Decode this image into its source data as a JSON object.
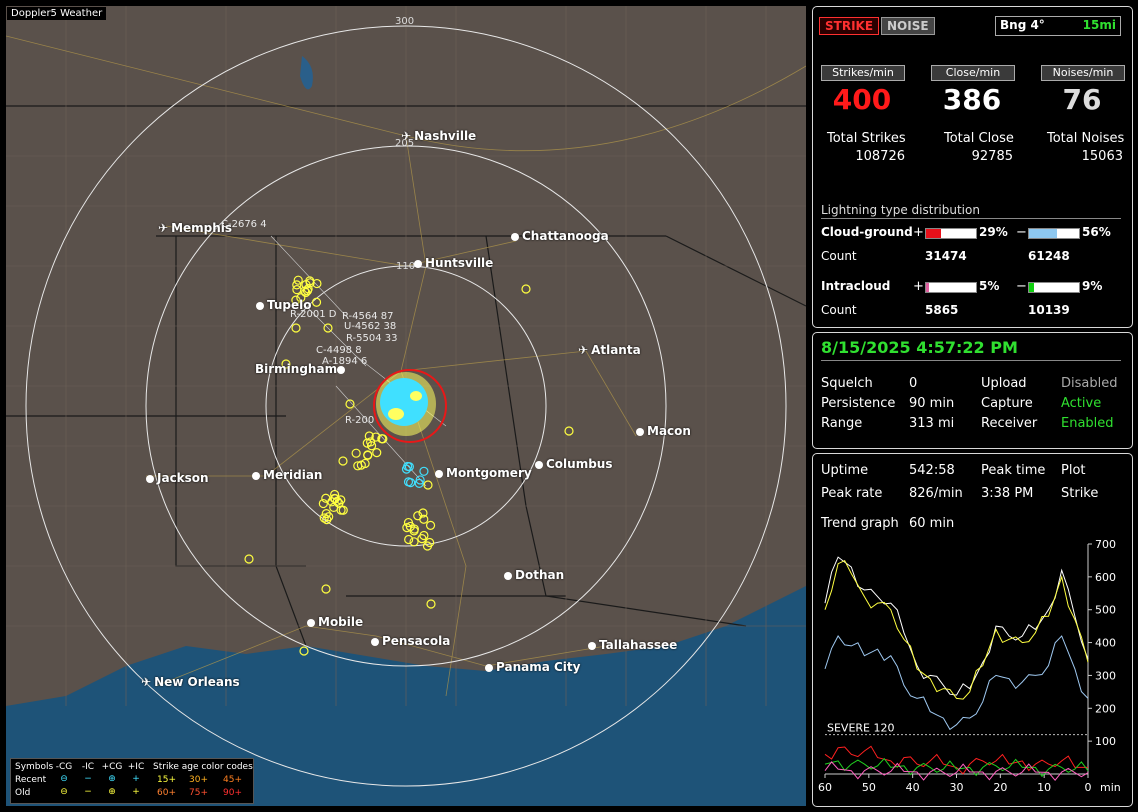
{
  "map": {
    "title": "Doppler5 Weather",
    "ring_labels": [
      "300",
      "205",
      "110"
    ],
    "cities": [
      {
        "name": "Nashville",
        "icon": "plane-icon",
        "x": 395,
        "y": 129
      },
      {
        "name": "Memphis",
        "icon": "plane-icon",
        "x": 152,
        "y": 221
      },
      {
        "name": "Chattanooga",
        "icon": "dot-icon",
        "x": 505,
        "y": 229
      },
      {
        "name": "Huntsville",
        "icon": "dot-icon",
        "x": 408,
        "y": 256
      },
      {
        "name": "Tupelo",
        "icon": "dot-icon",
        "x": 250,
        "y": 298
      },
      {
        "name": "Atlanta",
        "icon": "plane-icon",
        "x": 572,
        "y": 343
      },
      {
        "name": "Birmingham",
        "icon": "dot-icon",
        "x": 321,
        "y": 362,
        "left": true
      },
      {
        "name": "Macon",
        "icon": "dot-icon",
        "x": 630,
        "y": 424
      },
      {
        "name": "Columbus",
        "icon": "dot-icon",
        "x": 529,
        "y": 457
      },
      {
        "name": "Montgomery",
        "icon": "dot-icon",
        "x": 429,
        "y": 466
      },
      {
        "name": "Jackson",
        "icon": "dot-icon",
        "x": 140,
        "y": 471
      },
      {
        "name": "Meridian",
        "icon": "dot-icon",
        "x": 246,
        "y": 468
      },
      {
        "name": "Dothan",
        "icon": "dot-icon",
        "x": 498,
        "y": 568
      },
      {
        "name": "Mobile",
        "icon": "dot-icon",
        "x": 301,
        "y": 615
      },
      {
        "name": "Pensacola",
        "icon": "dot-icon",
        "x": 365,
        "y": 634
      },
      {
        "name": "Tallahassee",
        "icon": "dot-icon",
        "x": 582,
        "y": 638
      },
      {
        "name": "Panama City",
        "icon": "dot-icon",
        "x": 479,
        "y": 660
      },
      {
        "name": "New Orleans",
        "icon": "plane-icon",
        "x": 135,
        "y": 675
      }
    ],
    "storm_labels": [
      "C-2676 4",
      "R-2001 D",
      "R-4564 87",
      "U-4562 38",
      "R-5504 33",
      "C-4498 8",
      "A-1894 6",
      "R-200"
    ]
  },
  "legend": {
    "symbols_label": "Symbols",
    "headers": [
      "-CG",
      "-IC",
      "+CG",
      "+IC"
    ],
    "age_label": "Strike age color codes",
    "recent_label": "Recent",
    "old_label": "Old",
    "recent_ages": [
      "15+",
      "30+",
      "45+"
    ],
    "old_ages": [
      "60+",
      "75+",
      "90+"
    ]
  },
  "top_panel": {
    "strike_btn": "STRIKE",
    "noise_btn": "NOISE",
    "bearing": "Bng 4°",
    "distance": "15mi",
    "strikes_hdr": "Strikes/min",
    "close_hdr": "Close/min",
    "noises_hdr": "Noises/min",
    "strikes_val": "400",
    "close_val": "386",
    "noises_val": "76",
    "total_strikes_lbl": "Total Strikes",
    "total_close_lbl": "Total Close",
    "total_noises_lbl": "Total Noises",
    "total_strikes": "108726",
    "total_close": "92785",
    "total_noises": "15063",
    "dist_title": "Lightning type distribution",
    "cg_label": "Cloud-ground",
    "ic_label": "Intracloud",
    "count_label": "Count",
    "plus": "+",
    "minus": "−",
    "cg_pos_pct": "29%",
    "cg_neg_pct": "56%",
    "ic_pos_pct": "5%",
    "ic_neg_pct": "9%",
    "cg_pos_frac": 0.29,
    "cg_neg_frac": 0.56,
    "ic_pos_frac": 0.05,
    "ic_neg_frac": 0.09,
    "cg_pos_count": "31474",
    "cg_neg_count": "61248",
    "ic_pos_count": "5865",
    "ic_neg_count": "10139",
    "colors": {
      "cg_pos": "#e8101a",
      "cg_neg": "#8ec8f0",
      "ic_pos": "#e060a0",
      "ic_neg": "#10d010"
    }
  },
  "mid_panel": {
    "datetime": "8/15/2025 4:57:22 PM",
    "squelch_lbl": "Squelch",
    "squelch": "0",
    "upload_lbl": "Upload",
    "upload": "Disabled",
    "persistence_lbl": "Persistence",
    "persistence": "90 min",
    "capture_lbl": "Capture",
    "capture": "Active",
    "range_lbl": "Range",
    "range": "313 mi",
    "receiver_lbl": "Receiver",
    "receiver": "Enabled"
  },
  "bottom_panel": {
    "uptime_lbl": "Uptime",
    "uptime": "542:58",
    "peak_time_lbl": "Peak time",
    "plot_lbl": "Plot",
    "peak_rate_lbl": "Peak rate",
    "peak_rate": "826/min",
    "peak_time": "3:38 PM",
    "plot": "Strike",
    "trend_lbl": "Trend graph",
    "trend": "60 min",
    "severe_label": "SEVERE 120",
    "y_ticks": [
      "700",
      "600",
      "500",
      "400",
      "300",
      "200",
      "100"
    ],
    "x_ticks": [
      "60",
      "50",
      "40",
      "30",
      "20",
      "10",
      "0"
    ],
    "x_unit": "min"
  },
  "chart_data": {
    "type": "line",
    "x": [
      60,
      57,
      54,
      51,
      48,
      45,
      42,
      39,
      36,
      33,
      30,
      27,
      24,
      21,
      18,
      15,
      12,
      9,
      6,
      3,
      0
    ],
    "ylim": [
      0,
      700
    ],
    "xlim": [
      60,
      0
    ],
    "series": [
      {
        "color": "#ffffff",
        "values": [
          520,
          660,
          630,
          560,
          540,
          520,
          430,
          330,
          300,
          270,
          240,
          260,
          340,
          450,
          420,
          420,
          440,
          500,
          620,
          480,
          350
        ]
      },
      {
        "color": "#ffff40",
        "values": [
          500,
          640,
          610,
          540,
          520,
          500,
          410,
          320,
          290,
          260,
          230,
          250,
          330,
          440,
          410,
          400,
          430,
          480,
          600,
          470,
          340
        ]
      },
      {
        "color": "#9ec8f0",
        "values": [
          320,
          420,
          390,
          360,
          380,
          360,
          270,
          230,
          190,
          170,
          150,
          170,
          220,
          300,
          290,
          280,
          300,
          330,
          420,
          320,
          230
        ]
      },
      {
        "color": "#ff2020",
        "values": [
          60,
          80,
          60,
          70,
          50,
          40,
          50,
          30,
          40,
          30,
          20,
          30,
          40,
          40,
          30,
          40,
          30,
          30,
          40,
          20,
          20
        ]
      },
      {
        "color": "#20d020",
        "values": [
          30,
          40,
          30,
          30,
          25,
          20,
          25,
          20,
          20,
          15,
          15,
          20,
          20,
          25,
          20,
          20,
          20,
          15,
          20,
          15,
          10
        ]
      },
      {
        "color": "#ff60c0",
        "values": [
          10,
          15,
          10,
          10,
          10,
          8,
          8,
          6,
          6,
          5,
          5,
          6,
          6,
          8,
          6,
          6,
          6,
          5,
          6,
          4,
          4
        ]
      }
    ],
    "severe_level": 120
  }
}
